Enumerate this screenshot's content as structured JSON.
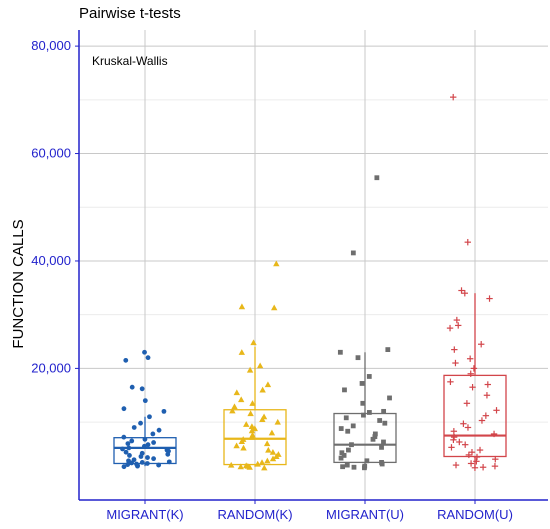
{
  "chart_data": {
    "type": "box",
    "title": "Pairwise t-tests",
    "annotation": "Kruskal-Wallis",
    "xlabel": "",
    "ylabel": "FUNCTION CALLS",
    "ylim": [
      -4500,
      83000
    ],
    "yticks": [
      20000,
      40000,
      60000,
      80000
    ],
    "ytick_labels": [
      "20,000",
      "40,000",
      "60,000",
      "80,000"
    ],
    "grid": true,
    "categories": [
      "MIGRANT(K)",
      "RANDOM(K)",
      "MIGRANT(U)",
      "RANDOM(U)"
    ],
    "colors": [
      "#1f5fb0",
      "#e8b71a",
      "#6e6e6e",
      "#d2454a"
    ],
    "markers": [
      "circle",
      "triangle",
      "square",
      "plus"
    ],
    "boxes": [
      {
        "min": 1800,
        "q1": 2300,
        "median": 5200,
        "q3": 7100,
        "max": 11000
      },
      {
        "min": 1700,
        "q1": 2100,
        "median": 6900,
        "q3": 12300,
        "max": 24000
      },
      {
        "min": 1500,
        "q1": 2500,
        "median": 5800,
        "q3": 11600,
        "max": 23000
      },
      {
        "min": 1500,
        "q1": 3600,
        "median": 7500,
        "q3": 18700,
        "max": 34000
      }
    ],
    "points": [
      [
        23000,
        22000,
        21500,
        16500,
        16200,
        14000,
        12500,
        12000,
        11000,
        9800,
        9000,
        8500,
        7800,
        7200,
        6800,
        6500,
        6200,
        6000,
        5800,
        5500,
        5200,
        5000,
        4800,
        4600,
        4400,
        4200,
        4000,
        3800,
        3600,
        3400,
        3200,
        3000,
        2800,
        2600,
        2500,
        2400,
        2300,
        2200,
        2100,
        2000,
        1900,
        1800,
        1700
      ],
      [
        39500,
        31500,
        31300,
        24800,
        23000,
        20500,
        19700,
        17000,
        16000,
        15500,
        14200,
        13500,
        12900,
        12100,
        11600,
        11000,
        10500,
        10000,
        9600,
        9200,
        8800,
        8400,
        8000,
        7600,
        7200,
        6800,
        6400,
        6000,
        5600,
        5200,
        4800,
        4400,
        4000,
        3600,
        3200,
        2800,
        2500,
        2200,
        2000,
        1900,
        1800,
        1700,
        1600,
        1500
      ],
      [
        55500,
        41500,
        23500,
        23000,
        22000,
        18500,
        17200,
        16000,
        14500,
        13500,
        12000,
        11800,
        11300,
        10800,
        10300,
        9800,
        9300,
        8800,
        8300,
        7800,
        7300,
        6800,
        6300,
        5800,
        5300,
        4800,
        4300,
        3800,
        3300,
        2800,
        2500,
        2200,
        2000,
        1800,
        1700,
        1600,
        1500
      ],
      [
        70500,
        43500,
        34500,
        34000,
        33000,
        29000,
        28000,
        27500,
        24500,
        23500,
        21800,
        21000,
        20000,
        19000,
        17500,
        17000,
        16500,
        15000,
        13500,
        12200,
        11200,
        10300,
        9700,
        9000,
        8300,
        7800,
        7200,
        6700,
        6300,
        5800,
        5300,
        4800,
        4400,
        3900,
        3500,
        3100,
        2700,
        2300,
        2000,
        1800,
        1600,
        1500
      ]
    ]
  }
}
